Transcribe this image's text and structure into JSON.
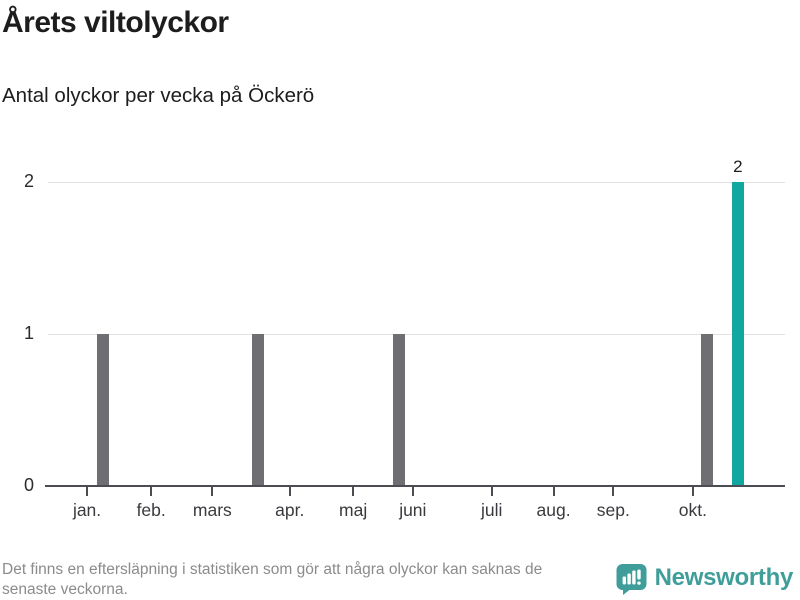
{
  "title": "Årets viltolyckor",
  "subtitle": "Antal olyckor per vecka på Öckerö",
  "footer": {
    "line1": "Det finns en eftersläpning i statistiken som gör att några olyckor kan saknas de",
    "line2": "senaste veckorna."
  },
  "logo": {
    "label": "Newsworthy",
    "icon": "newsworthy-speech-bubble-bar-chart-icon"
  },
  "colors": {
    "text": "#1d1d1d",
    "bar_default": "#6f6e73",
    "bar_highlight": "#10a7a0",
    "gridline": "#e2e2e2",
    "axis": "#4c4c52",
    "footnote_text": "#8b8b8b",
    "logo": "#3f9e9a"
  },
  "chart_data": {
    "type": "bar",
    "title": "Årets viltolyckor",
    "subtitle": "Antal olyckor per vecka på Öckerö",
    "xlabel": "",
    "ylabel": "Antal olyckor per vecka",
    "x_unit": "vecka",
    "ylim": [
      0,
      2
    ],
    "yticks": [
      0,
      1,
      2
    ],
    "grid": "horizontal",
    "legend": "none",
    "x_ticks": [
      {
        "label": "jan.",
        "x_pct": 5.3
      },
      {
        "label": "feb.",
        "x_pct": 14.0
      },
      {
        "label": "mars",
        "x_pct": 22.3
      },
      {
        "label": "apr.",
        "x_pct": 32.8
      },
      {
        "label": "maj",
        "x_pct": 41.4
      },
      {
        "label": "juni",
        "x_pct": 49.5
      },
      {
        "label": "juli",
        "x_pct": 60.2
      },
      {
        "label": "aug.",
        "x_pct": 68.6
      },
      {
        "label": "sep.",
        "x_pct": 76.7
      },
      {
        "label": "okt.",
        "x_pct": 87.5
      }
    ],
    "bars": [
      {
        "x_pct": 7.5,
        "value": 1,
        "highlight": false,
        "near": "mitten av januari"
      },
      {
        "x_pct": 28.5,
        "value": 1,
        "highlight": false,
        "near": "slutet av mars"
      },
      {
        "x_pct": 47.6,
        "value": 1,
        "highlight": false,
        "near": "slutet av maj"
      },
      {
        "x_pct": 89.4,
        "value": 1,
        "highlight": false,
        "near": "mitten av oktober"
      },
      {
        "x_pct": 93.6,
        "value": 2,
        "highlight": true,
        "label": "2",
        "near": "slutet av oktober"
      }
    ]
  }
}
